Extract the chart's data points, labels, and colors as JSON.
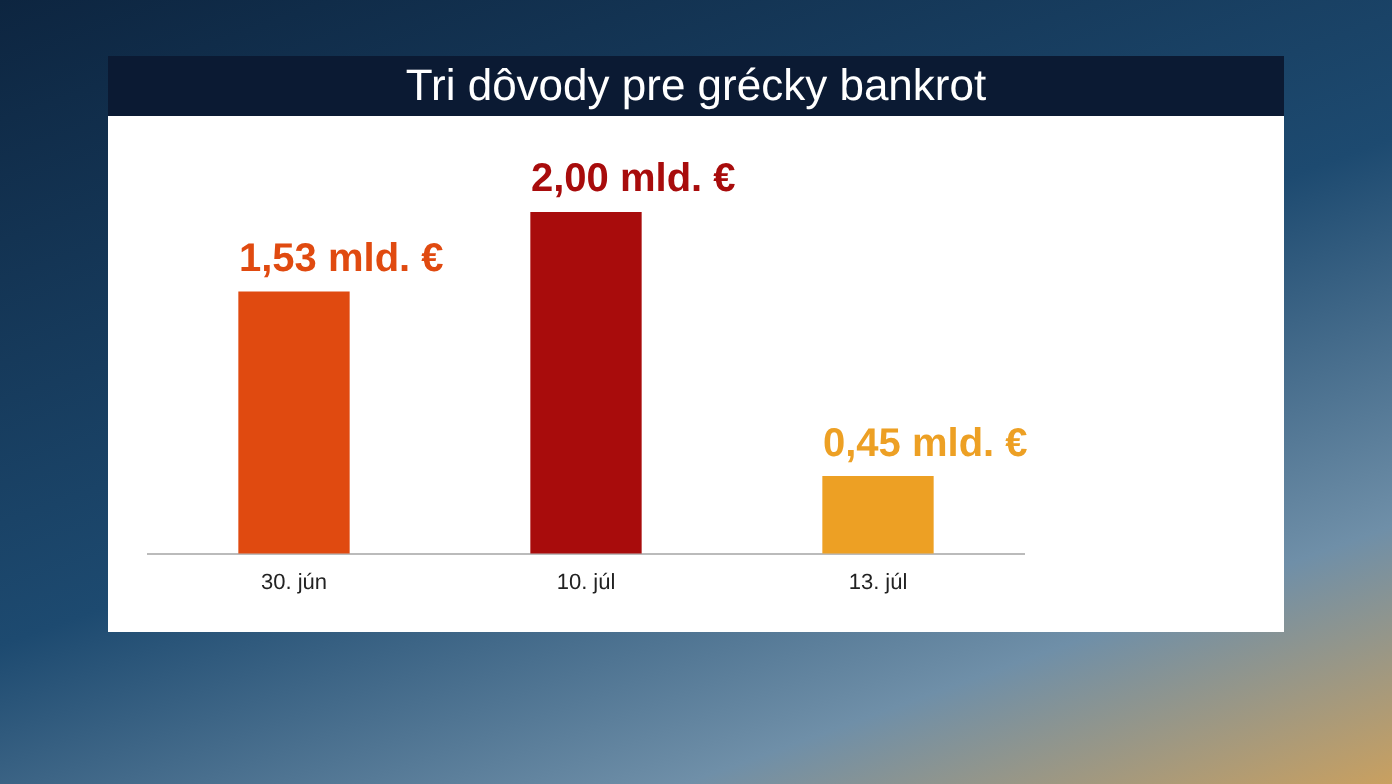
{
  "chart_data": {
    "type": "bar",
    "title": "Tri dôvody pre grécky bankrot",
    "categories": [
      "30. jún",
      "10. júl",
      "13. júl"
    ],
    "values": [
      1.53,
      2.0,
      0.45
    ],
    "colors": [
      "#e04a10",
      "#a80c0c",
      "#eda024"
    ],
    "value_labels": [
      "1,53 mld. €",
      "2,00 mld. €",
      "0,45 mld. €"
    ],
    "grid": false,
    "legend": false,
    "tick_labels": "x"
  }
}
